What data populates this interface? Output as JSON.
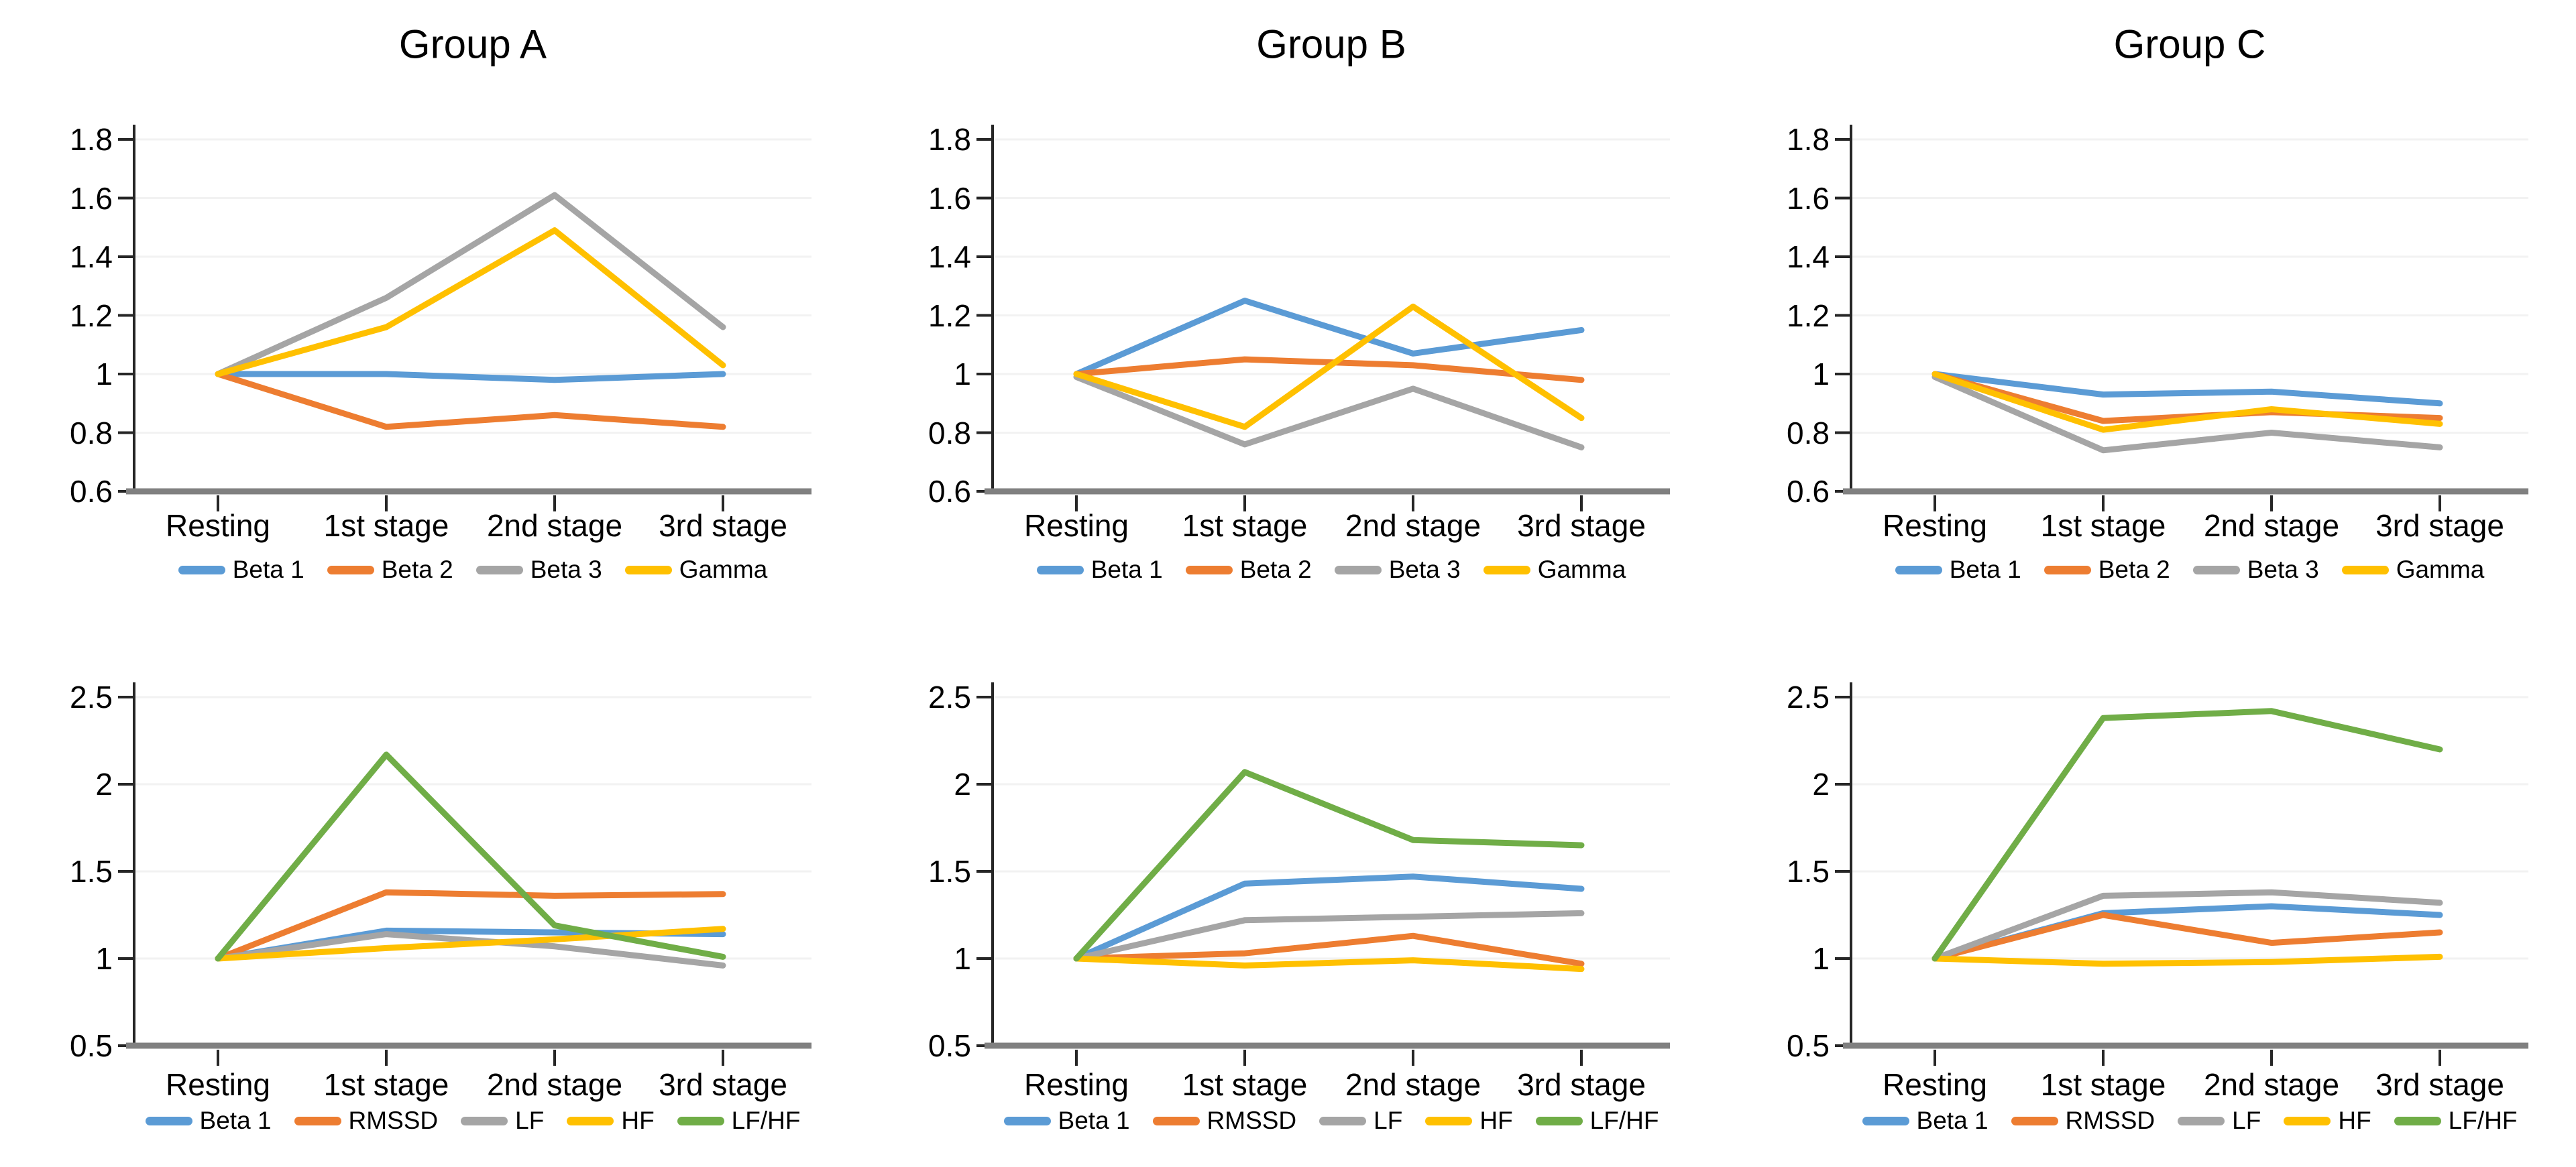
{
  "figure": {
    "background": "#ffffff",
    "columns": [
      "Group A",
      "Group B",
      "Group C"
    ],
    "stages": [
      "Resting",
      "1st stage",
      "2nd stage",
      "3rd stage"
    ]
  },
  "style": {
    "axis_x_color": "#808080",
    "axis_y_color": "#262626",
    "tick_color": "#262626",
    "grid_color": "#f2f2f2",
    "text_color": "#000000",
    "series_colors": {
      "blue": "#5B9BD5",
      "orange": "#ED7D31",
      "gray": "#A5A5A5",
      "yellow": "#FFC000",
      "green": "#70AD47"
    }
  },
  "chart_data": [
    {
      "id": "eeg-group-a",
      "type": "line",
      "row": 0,
      "col": 0,
      "title": "Group A",
      "categories": [
        "Resting",
        "1st stage",
        "2nd stage",
        "3rd stage"
      ],
      "ylim": [
        0.6,
        1.8
      ],
      "ytick_values": [
        0.6,
        0.8,
        1.0,
        1.2,
        1.4,
        1.6,
        1.8
      ],
      "ytick_labels": [
        "0.6",
        "0.8",
        "1",
        "1.2",
        "1.4",
        "1.6",
        "1.8"
      ],
      "grid": true,
      "legend_position": "bottom",
      "series": [
        {
          "name": "Beta 1",
          "color": "#5B9BD5",
          "values": [
            1.0,
            1.0,
            0.98,
            1.0
          ]
        },
        {
          "name": "Beta 2",
          "color": "#ED7D31",
          "values": [
            1.0,
            0.82,
            0.86,
            0.82
          ]
        },
        {
          "name": "Beta 3",
          "color": "#A5A5A5",
          "values": [
            1.0,
            1.26,
            1.61,
            1.16
          ]
        },
        {
          "name": "Gamma",
          "color": "#FFC000",
          "values": [
            1.0,
            1.16,
            1.49,
            1.03
          ]
        }
      ]
    },
    {
      "id": "eeg-group-b",
      "type": "line",
      "row": 0,
      "col": 1,
      "title": "Group B",
      "categories": [
        "Resting",
        "1st stage",
        "2nd stage",
        "3rd stage"
      ],
      "ylim": [
        0.6,
        1.8
      ],
      "ytick_values": [
        0.6,
        0.8,
        1.0,
        1.2,
        1.4,
        1.6,
        1.8
      ],
      "ytick_labels": [
        "0.6",
        "0.8",
        "1",
        "1.2",
        "1.4",
        "1.6",
        "1.8"
      ],
      "grid": true,
      "legend_position": "bottom",
      "series": [
        {
          "name": "Beta 1",
          "color": "#5B9BD5",
          "values": [
            1.0,
            1.25,
            1.07,
            1.15
          ]
        },
        {
          "name": "Beta 2",
          "color": "#ED7D31",
          "values": [
            1.0,
            1.05,
            1.03,
            0.98
          ]
        },
        {
          "name": "Beta 3",
          "color": "#A5A5A5",
          "values": [
            0.99,
            0.76,
            0.95,
            0.75
          ]
        },
        {
          "name": "Gamma",
          "color": "#FFC000",
          "values": [
            1.0,
            0.82,
            1.23,
            0.85
          ]
        }
      ]
    },
    {
      "id": "eeg-group-c",
      "type": "line",
      "row": 0,
      "col": 2,
      "title": "Group C",
      "categories": [
        "Resting",
        "1st stage",
        "2nd stage",
        "3rd stage"
      ],
      "ylim": [
        0.6,
        1.8
      ],
      "ytick_values": [
        0.6,
        0.8,
        1.0,
        1.2,
        1.4,
        1.6,
        1.8
      ],
      "ytick_labels": [
        "0.6",
        "0.8",
        "1",
        "1.2",
        "1.4",
        "1.6",
        "1.8"
      ],
      "grid": true,
      "legend_position": "bottom",
      "series": [
        {
          "name": "Beta 1",
          "color": "#5B9BD5",
          "values": [
            1.0,
            0.93,
            0.94,
            0.9
          ]
        },
        {
          "name": "Beta 2",
          "color": "#ED7D31",
          "values": [
            1.0,
            0.84,
            0.87,
            0.85
          ]
        },
        {
          "name": "Beta 3",
          "color": "#A5A5A5",
          "values": [
            0.99,
            0.74,
            0.8,
            0.75
          ]
        },
        {
          "name": "Gamma",
          "color": "#FFC000",
          "values": [
            1.0,
            0.81,
            0.88,
            0.83
          ]
        }
      ]
    },
    {
      "id": "hrv-group-a",
      "type": "line",
      "row": 1,
      "col": 0,
      "title": "",
      "categories": [
        "Resting",
        "1st stage",
        "2nd stage",
        "3rd stage"
      ],
      "ylim": [
        0.5,
        2.5
      ],
      "ytick_values": [
        0.5,
        1.0,
        1.5,
        2.0,
        2.5
      ],
      "ytick_labels": [
        "0.5",
        "1",
        "1.5",
        "2",
        "2.5"
      ],
      "grid": true,
      "legend_position": "bottom",
      "series": [
        {
          "name": "Beta 1",
          "color": "#5B9BD5",
          "values": [
            1.0,
            1.16,
            1.15,
            1.14
          ]
        },
        {
          "name": "RMSSD",
          "color": "#ED7D31",
          "values": [
            1.0,
            1.38,
            1.36,
            1.37
          ]
        },
        {
          "name": "LF",
          "color": "#A5A5A5",
          "values": [
            1.0,
            1.14,
            1.07,
            0.96
          ]
        },
        {
          "name": "HF",
          "color": "#FFC000",
          "values": [
            1.0,
            1.06,
            1.11,
            1.17
          ]
        },
        {
          "name": "LF/HF",
          "color": "#70AD47",
          "values": [
            1.0,
            2.17,
            1.19,
            1.01
          ]
        }
      ]
    },
    {
      "id": "hrv-group-b",
      "type": "line",
      "row": 1,
      "col": 1,
      "title": "",
      "categories": [
        "Resting",
        "1st stage",
        "2nd stage",
        "3rd stage"
      ],
      "ylim": [
        0.5,
        2.5
      ],
      "ytick_values": [
        0.5,
        1.0,
        1.5,
        2.0,
        2.5
      ],
      "ytick_labels": [
        "0.5",
        "1",
        "1.5",
        "2",
        "2.5"
      ],
      "grid": true,
      "legend_position": "bottom",
      "series": [
        {
          "name": "Beta 1",
          "color": "#5B9BD5",
          "values": [
            1.0,
            1.43,
            1.47,
            1.4
          ]
        },
        {
          "name": "RMSSD",
          "color": "#ED7D31",
          "values": [
            1.0,
            1.03,
            1.13,
            0.97
          ]
        },
        {
          "name": "LF",
          "color": "#A5A5A5",
          "values": [
            1.0,
            1.22,
            1.24,
            1.26
          ]
        },
        {
          "name": "HF",
          "color": "#FFC000",
          "values": [
            1.0,
            0.96,
            0.99,
            0.94
          ]
        },
        {
          "name": "LF/HF",
          "color": "#70AD47",
          "values": [
            1.0,
            2.07,
            1.68,
            1.65
          ]
        }
      ]
    },
    {
      "id": "hrv-group-c",
      "type": "line",
      "row": 1,
      "col": 2,
      "title": "",
      "categories": [
        "Resting",
        "1st stage",
        "2nd stage",
        "3rd stage"
      ],
      "ylim": [
        0.5,
        2.5
      ],
      "ytick_values": [
        0.5,
        1.0,
        1.5,
        2.0,
        2.5
      ],
      "ytick_labels": [
        "0.5",
        "1",
        "1.5",
        "2",
        "2.5"
      ],
      "grid": true,
      "legend_position": "bottom",
      "series": [
        {
          "name": "Beta 1",
          "color": "#5B9BD5",
          "values": [
            1.0,
            1.26,
            1.3,
            1.25
          ]
        },
        {
          "name": "RMSSD",
          "color": "#ED7D31",
          "values": [
            1.0,
            1.25,
            1.09,
            1.15
          ]
        },
        {
          "name": "LF",
          "color": "#A5A5A5",
          "values": [
            1.0,
            1.36,
            1.38,
            1.32
          ]
        },
        {
          "name": "HF",
          "color": "#FFC000",
          "values": [
            1.0,
            0.97,
            0.98,
            1.01
          ]
        },
        {
          "name": "LF/HF",
          "color": "#70AD47",
          "values": [
            1.0,
            2.38,
            2.42,
            2.2
          ]
        }
      ]
    }
  ]
}
